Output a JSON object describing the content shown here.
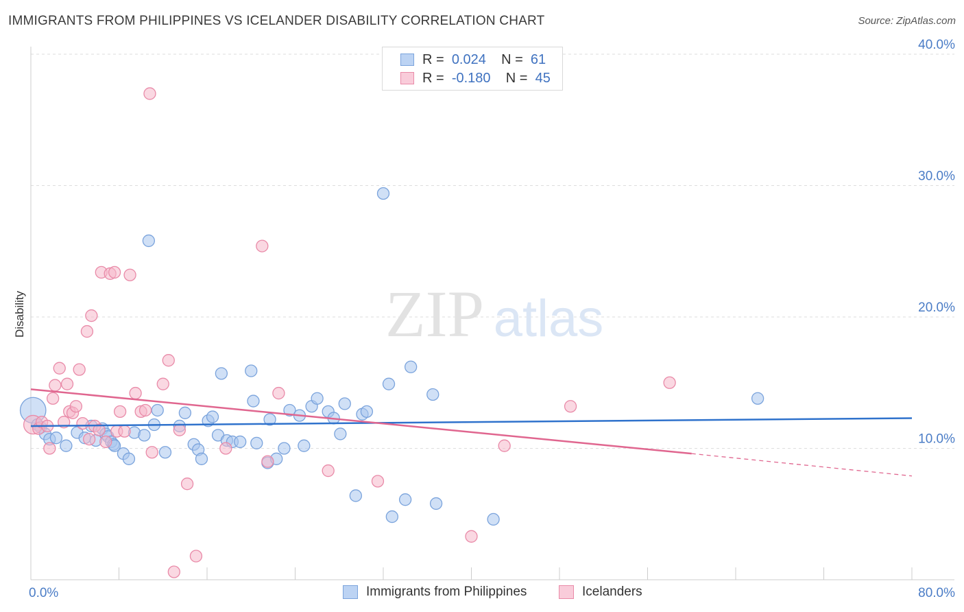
{
  "header": {
    "title": "IMMIGRANTS FROM PHILIPPINES VS ICELANDER DISABILITY CORRELATION CHART",
    "source": "Source: ZipAtlas.com"
  },
  "watermark": {
    "zip": "ZIP",
    "atlas": "atlas"
  },
  "legend": {
    "rows": [
      {
        "r_label": "R =",
        "r_value": "0.024",
        "n_label": "N =",
        "n_value": "61",
        "color": "#a9c6ef"
      },
      {
        "r_label": "R =",
        "r_value": "-0.180",
        "n_label": "N =",
        "n_value": "45",
        "color": "#f5b8cb"
      }
    ]
  },
  "bottom_legend": [
    {
      "label": "Immigrants from Philippines",
      "color": "#a9c6ef"
    },
    {
      "label": "Icelanders",
      "color": "#f5b8cb"
    }
  ],
  "chart_data": {
    "type": "scatter",
    "title": "IMMIGRANTS FROM PHILIPPINES VS ICELANDER DISABILITY CORRELATION CHART",
    "xlabel": "",
    "ylabel": "Disability",
    "xlim": [
      0,
      80
    ],
    "ylim": [
      0,
      40
    ],
    "x_tick_labels": [
      {
        "value": 0,
        "label": "0.0%"
      },
      {
        "value": 80,
        "label": "80.0%"
      }
    ],
    "y_tick_labels": [
      {
        "value": 10,
        "label": "10.0%"
      },
      {
        "value": 20,
        "label": "20.0%"
      },
      {
        "value": 30,
        "label": "30.0%"
      },
      {
        "value": 40,
        "label": "40.0%"
      }
    ],
    "grid": true,
    "colors": {
      "blue_fill": "#a9c6ef",
      "blue_stroke": "#7aa3dc",
      "blue_line": "#2f72cc",
      "pink_fill": "#f5b8cb",
      "pink_stroke": "#e98aa8",
      "pink_line": "#e0668f"
    },
    "series": [
      {
        "name": "Immigrants from Philippines",
        "trend": {
          "x0": 0,
          "y0": 11.7,
          "x1": 80,
          "y1": 12.3
        },
        "points": [
          [
            0.2,
            12.9,
            2.2
          ],
          [
            0.6,
            11.8,
            1
          ],
          [
            0.9,
            11.6,
            1
          ],
          [
            1.3,
            11.1,
            1
          ],
          [
            1.7,
            10.7,
            1
          ],
          [
            2.3,
            10.8,
            1
          ],
          [
            3.2,
            10.2,
            1
          ],
          [
            4.2,
            11.2,
            1
          ],
          [
            4.9,
            10.8,
            1
          ],
          [
            5.5,
            11.7,
            1
          ],
          [
            5.9,
            10.6,
            1
          ],
          [
            6.5,
            11.5,
            1
          ],
          [
            6.8,
            11.1,
            1
          ],
          [
            7.0,
            10.9,
            1
          ],
          [
            7.3,
            10.5,
            1
          ],
          [
            7.5,
            10.3,
            1
          ],
          [
            7.6,
            10.2,
            1
          ],
          [
            8.4,
            9.6,
            1
          ],
          [
            8.9,
            9.2,
            1
          ],
          [
            9.4,
            11.2,
            1
          ],
          [
            10.3,
            11.0,
            1
          ],
          [
            11.2,
            11.8,
            1
          ],
          [
            11.5,
            12.9,
            1
          ],
          [
            12.2,
            9.7,
            1
          ],
          [
            13.5,
            11.7,
            1
          ],
          [
            14.0,
            12.7,
            1
          ],
          [
            14.8,
            10.3,
            1
          ],
          [
            15.2,
            9.9,
            1
          ],
          [
            15.5,
            9.2,
            1
          ],
          [
            16.1,
            12.1,
            1
          ],
          [
            16.5,
            12.4,
            1
          ],
          [
            17.0,
            11.0,
            1
          ],
          [
            17.3,
            15.7,
            1
          ],
          [
            17.8,
            10.6,
            1
          ],
          [
            18.3,
            10.5,
            1
          ],
          [
            19.0,
            10.5,
            1
          ],
          [
            20.0,
            15.9,
            1
          ],
          [
            20.2,
            13.6,
            1
          ],
          [
            20.5,
            10.4,
            1
          ],
          [
            21.5,
            8.9,
            1
          ],
          [
            21.7,
            12.2,
            1
          ],
          [
            22.3,
            9.2,
            1
          ],
          [
            23.0,
            10.0,
            1
          ],
          [
            23.5,
            12.9,
            1
          ],
          [
            24.4,
            12.5,
            1
          ],
          [
            24.8,
            10.2,
            1
          ],
          [
            25.5,
            13.2,
            1
          ],
          [
            26.0,
            13.8,
            1
          ],
          [
            27.0,
            12.8,
            1
          ],
          [
            27.5,
            12.3,
            1
          ],
          [
            28.1,
            11.1,
            1
          ],
          [
            28.5,
            13.4,
            1
          ],
          [
            29.5,
            6.4,
            1
          ],
          [
            30.1,
            12.6,
            1
          ],
          [
            30.5,
            12.8,
            1
          ],
          [
            32.0,
            29.4,
            1
          ],
          [
            32.5,
            14.9,
            1
          ],
          [
            32.8,
            4.8,
            1
          ],
          [
            34.0,
            6.1,
            1
          ],
          [
            34.5,
            16.2,
            1
          ],
          [
            36.5,
            14.1,
            1
          ],
          [
            36.8,
            5.8,
            1
          ],
          [
            42.0,
            4.6,
            1
          ],
          [
            66.0,
            13.8,
            1
          ],
          [
            10.7,
            25.8,
            1
          ]
        ]
      },
      {
        "name": "Icelanders",
        "trend": {
          "x0": 0,
          "y0": 14.5,
          "x1": 60,
          "y1": 9.6,
          "dash_x1": 80,
          "dash_y1": 7.9
        },
        "points": [
          [
            0.2,
            11.8,
            1.6
          ],
          [
            0.7,
            11.5,
            1
          ],
          [
            1.0,
            12.0,
            1
          ],
          [
            1.5,
            11.7,
            1
          ],
          [
            1.7,
            10.0,
            1
          ],
          [
            2.0,
            13.8,
            1
          ],
          [
            2.2,
            14.8,
            1
          ],
          [
            2.6,
            16.1,
            1
          ],
          [
            3.0,
            12.0,
            1
          ],
          [
            3.3,
            14.9,
            1
          ],
          [
            3.5,
            12.8,
            1
          ],
          [
            3.8,
            12.7,
            1
          ],
          [
            4.1,
            13.2,
            1
          ],
          [
            4.4,
            16.0,
            1
          ],
          [
            4.7,
            11.9,
            1
          ],
          [
            5.1,
            18.9,
            1
          ],
          [
            5.3,
            10.7,
            1
          ],
          [
            5.5,
            20.1,
            1
          ],
          [
            5.8,
            11.7,
            1
          ],
          [
            6.2,
            11.4,
            1
          ],
          [
            6.4,
            23.4,
            1
          ],
          [
            6.8,
            10.5,
            1
          ],
          [
            7.2,
            23.3,
            1
          ],
          [
            7.6,
            23.4,
            1
          ],
          [
            7.8,
            11.3,
            1
          ],
          [
            8.1,
            12.8,
            1
          ],
          [
            8.5,
            11.3,
            1
          ],
          [
            9.0,
            23.2,
            1
          ],
          [
            9.5,
            14.2,
            1
          ],
          [
            10.0,
            12.8,
            1
          ],
          [
            10.4,
            12.9,
            1
          ],
          [
            10.8,
            37.0,
            1
          ],
          [
            11.0,
            9.7,
            1
          ],
          [
            12.0,
            14.9,
            1
          ],
          [
            12.5,
            16.7,
            1
          ],
          [
            13.0,
            0.6,
            1
          ],
          [
            13.5,
            11.4,
            1
          ],
          [
            14.2,
            7.3,
            1
          ],
          [
            15.0,
            1.8,
            1
          ],
          [
            17.7,
            10.0,
            1
          ],
          [
            21.0,
            25.4,
            1
          ],
          [
            21.5,
            9.0,
            1
          ],
          [
            22.5,
            14.2,
            1
          ],
          [
            27.0,
            8.3,
            1
          ],
          [
            31.5,
            7.5,
            1
          ],
          [
            40.0,
            3.3,
            1
          ],
          [
            43.0,
            10.2,
            1
          ],
          [
            49.0,
            13.2,
            1
          ],
          [
            58.0,
            15.0,
            1
          ]
        ]
      }
    ]
  }
}
